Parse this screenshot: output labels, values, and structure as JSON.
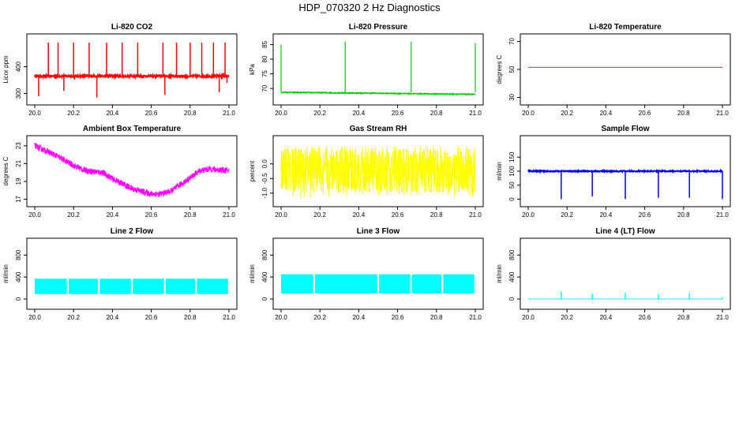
{
  "figure": {
    "title": "HDP_070320  2 Hz Diagnostics"
  },
  "chart_data": [
    {
      "id": "co2",
      "type": "line",
      "title": "Li-820 CO2",
      "ylabel": "Licor ppm",
      "color": "#ff0000",
      "xlim": [
        20.0,
        21.0
      ],
      "ylim": [
        275,
        505
      ],
      "xticks": [
        "20.0",
        "20.2",
        "20.4",
        "20.6",
        "20.8",
        "21.0"
      ],
      "yticks": [
        "300",
        "400"
      ],
      "baseline": 365,
      "noise": 4,
      "spikes": [
        [
          20.02,
          290
        ],
        [
          20.07,
          490
        ],
        [
          20.12,
          490
        ],
        [
          20.15,
          310
        ],
        [
          20.2,
          490
        ],
        [
          20.28,
          490
        ],
        [
          20.32,
          285
        ],
        [
          20.37,
          490
        ],
        [
          20.45,
          490
        ],
        [
          20.53,
          490
        ],
        [
          20.66,
          490
        ],
        [
          20.67,
          295
        ],
        [
          20.73,
          490
        ],
        [
          20.8,
          490
        ],
        [
          20.86,
          490
        ],
        [
          20.92,
          490
        ],
        [
          20.95,
          305
        ],
        [
          20.98,
          490
        ],
        [
          20.99,
          340
        ]
      ]
    },
    {
      "id": "pressure",
      "type": "line",
      "title": "Li-820 Pressure",
      "ylabel": "kPa",
      "color": "#00cc00",
      "xlim": [
        20.0,
        21.0
      ],
      "ylim": [
        66,
        87
      ],
      "xticks": [
        "20.0",
        "20.2",
        "20.4",
        "20.6",
        "20.8",
        "21.0"
      ],
      "yticks": [
        "70",
        "75",
        "80",
        "85"
      ],
      "start": 68.7,
      "end": 68.0,
      "noise": 0.15,
      "spikes": [
        [
          20.0,
          85.0
        ],
        [
          20.33,
          86.0
        ],
        [
          20.67,
          86.0
        ],
        [
          21.0,
          85.5
        ]
      ]
    },
    {
      "id": "li820temp",
      "type": "line",
      "title": "Li-820 Temperature",
      "ylabel": "degrees C",
      "color": "#ff00ff",
      "xlim": [
        20.0,
        21.0
      ],
      "ylim": [
        28,
        72
      ],
      "xticks": [
        "20.0",
        "20.2",
        "20.4",
        "20.6",
        "20.8",
        "21.0"
      ],
      "yticks": [
        "30",
        "50",
        "70"
      ],
      "value": 51.5
    },
    {
      "id": "boxtemp",
      "type": "line",
      "title": "Ambient Box Temperature",
      "ylabel": "degrees C",
      "color": "#ff00ff",
      "xlim": [
        20.0,
        21.0
      ],
      "ylim": [
        16.7,
        23.6
      ],
      "xticks": [
        "20.0",
        "20.2",
        "20.4",
        "20.6",
        "20.8",
        "21.0"
      ],
      "yticks": [
        "17",
        "19",
        "21",
        "23"
      ],
      "curve": [
        [
          20.0,
          23.0
        ],
        [
          20.1,
          22.0
        ],
        [
          20.2,
          20.8
        ],
        [
          20.25,
          20.3
        ],
        [
          20.3,
          20.1
        ],
        [
          20.35,
          20.0
        ],
        [
          20.4,
          19.3
        ],
        [
          20.5,
          18.2
        ],
        [
          20.6,
          17.6
        ],
        [
          20.65,
          17.6
        ],
        [
          20.7,
          17.9
        ],
        [
          20.8,
          19.4
        ],
        [
          20.85,
          20.2
        ],
        [
          20.9,
          20.4
        ],
        [
          21.0,
          20.2
        ]
      ],
      "noise": 0.35
    },
    {
      "id": "rh",
      "type": "line",
      "title": "Gas Stream RH",
      "ylabel": "percent",
      "color": "#ffff00",
      "xlim": [
        20.0,
        21.0
      ],
      "ylim": [
        -1.3,
        0.8
      ],
      "xticks": [
        "20.0",
        "20.2",
        "20.4",
        "20.6",
        "20.8",
        "21.0"
      ],
      "yticks": [
        "-1.0",
        "-0.5",
        "0.0"
      ],
      "center": -0.2,
      "noise": 0.8
    },
    {
      "id": "sampleflow",
      "type": "line",
      "title": "Sample Flow",
      "ylabel": "ml/min",
      "color": "#0000ff",
      "xlim": [
        20.0,
        21.0
      ],
      "ylim": [
        -10,
        210
      ],
      "xticks": [
        "20.0",
        "20.2",
        "20.4",
        "20.6",
        "20.8",
        "21.0"
      ],
      "yticks": [
        "0",
        "50",
        "100",
        "150"
      ],
      "baseline": 100,
      "noise": 2,
      "spikes": [
        [
          20.17,
          0
        ],
        [
          20.33,
          10
        ],
        [
          20.5,
          0
        ],
        [
          20.67,
          5
        ],
        [
          20.83,
          5
        ],
        [
          21.0,
          0
        ]
      ]
    },
    {
      "id": "line2",
      "type": "line",
      "title": "Line 2 Flow",
      "ylabel": "ml/min",
      "color": "#00ffff",
      "xlim": [
        20.0,
        21.0
      ],
      "ylim": [
        -100,
        1020
      ],
      "xticks": [
        "20.0",
        "20.2",
        "20.4",
        "20.6",
        "20.8",
        "21.0"
      ],
      "yticks": [
        "0",
        "400",
        "800"
      ],
      "low": 90,
      "high": 370,
      "gaps": [
        20.17,
        20.33,
        20.5,
        20.67,
        20.83
      ]
    },
    {
      "id": "line3",
      "type": "line",
      "title": "Line 3 Flow",
      "ylabel": "ml/min",
      "color": "#00ffff",
      "xlim": [
        20.0,
        21.0
      ],
      "ylim": [
        -100,
        1020
      ],
      "xticks": [
        "20.0",
        "20.2",
        "20.4",
        "20.6",
        "20.8",
        "21.0"
      ],
      "yticks": [
        "0",
        "400",
        "800"
      ],
      "low": 100,
      "high": 450,
      "gaps": [
        20.17,
        20.5,
        20.67,
        20.83
      ]
    },
    {
      "id": "line4",
      "type": "line",
      "title": "Line 4 (LT) Flow",
      "ylabel": "ml/min",
      "color": "#00ffff",
      "xlim": [
        20.0,
        21.0
      ],
      "ylim": [
        -100,
        1020
      ],
      "xticks": [
        "20.0",
        "20.2",
        "20.4",
        "20.6",
        "20.8",
        "21.0"
      ],
      "yticks": [
        "0",
        "400",
        "800"
      ],
      "baseline": 0,
      "spikes": [
        [
          20.17,
          130
        ],
        [
          20.33,
          90
        ],
        [
          20.5,
          120
        ],
        [
          20.67,
          80
        ],
        [
          20.83,
          110
        ],
        [
          21.0,
          30
        ]
      ]
    }
  ]
}
